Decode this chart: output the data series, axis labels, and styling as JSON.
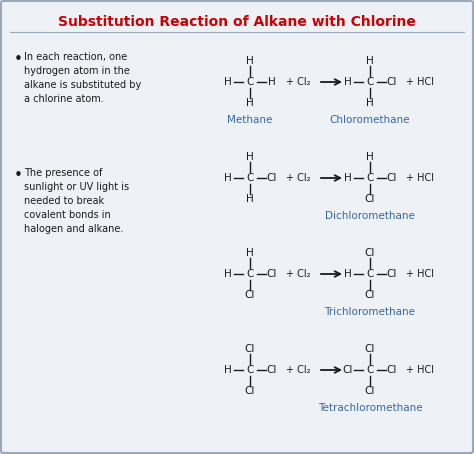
{
  "title": "Substitution Reaction of Alkane with Chlorine",
  "title_color": "#cc0000",
  "background_color": "#eef2f7",
  "border_color": "#99aabb",
  "text_color": "#1a1a1a",
  "blue_color": "#3366aa",
  "bullet1_lines": [
    "In each reaction, one",
    "hydrogen atom in the",
    "alkane is substituted by",
    "a chlorine atom."
  ],
  "bullet2_lines": [
    "The presence of",
    "sunlight or UV light is",
    "needed to break",
    "covalent bonds in",
    "halogen and alkane."
  ],
  "reactions": [
    {
      "name": "Methane",
      "product_name": "Chloromethane",
      "reactant_top": "H",
      "reactant_left": "H",
      "reactant_right": "H",
      "reactant_bottom": "H",
      "product_top": "H",
      "product_left": "H",
      "product_right": "Cl",
      "product_bottom": "H"
    },
    {
      "name": "Chloromethane",
      "product_name": "Dichloromethane",
      "reactant_top": "H",
      "reactant_left": "H",
      "reactant_right": "Cl",
      "reactant_bottom": "H",
      "product_top": "H",
      "product_left": "H",
      "product_right": "Cl",
      "product_bottom": "Cl"
    },
    {
      "name": "Dichloromethane",
      "product_name": "Trichloromethane",
      "reactant_top": "H",
      "reactant_left": "H",
      "reactant_right": "Cl",
      "reactant_bottom": "Cl",
      "product_top": "Cl",
      "product_left": "H",
      "product_right": "Cl",
      "product_bottom": "Cl"
    },
    {
      "name": "Trichloromethane",
      "product_name": "Tetrachloromethane",
      "reactant_top": "Cl",
      "reactant_left": "H",
      "reactant_right": "Cl",
      "reactant_bottom": "Cl",
      "product_top": "Cl",
      "product_left": "Cl",
      "product_right": "Cl",
      "product_bottom": "Cl"
    }
  ]
}
